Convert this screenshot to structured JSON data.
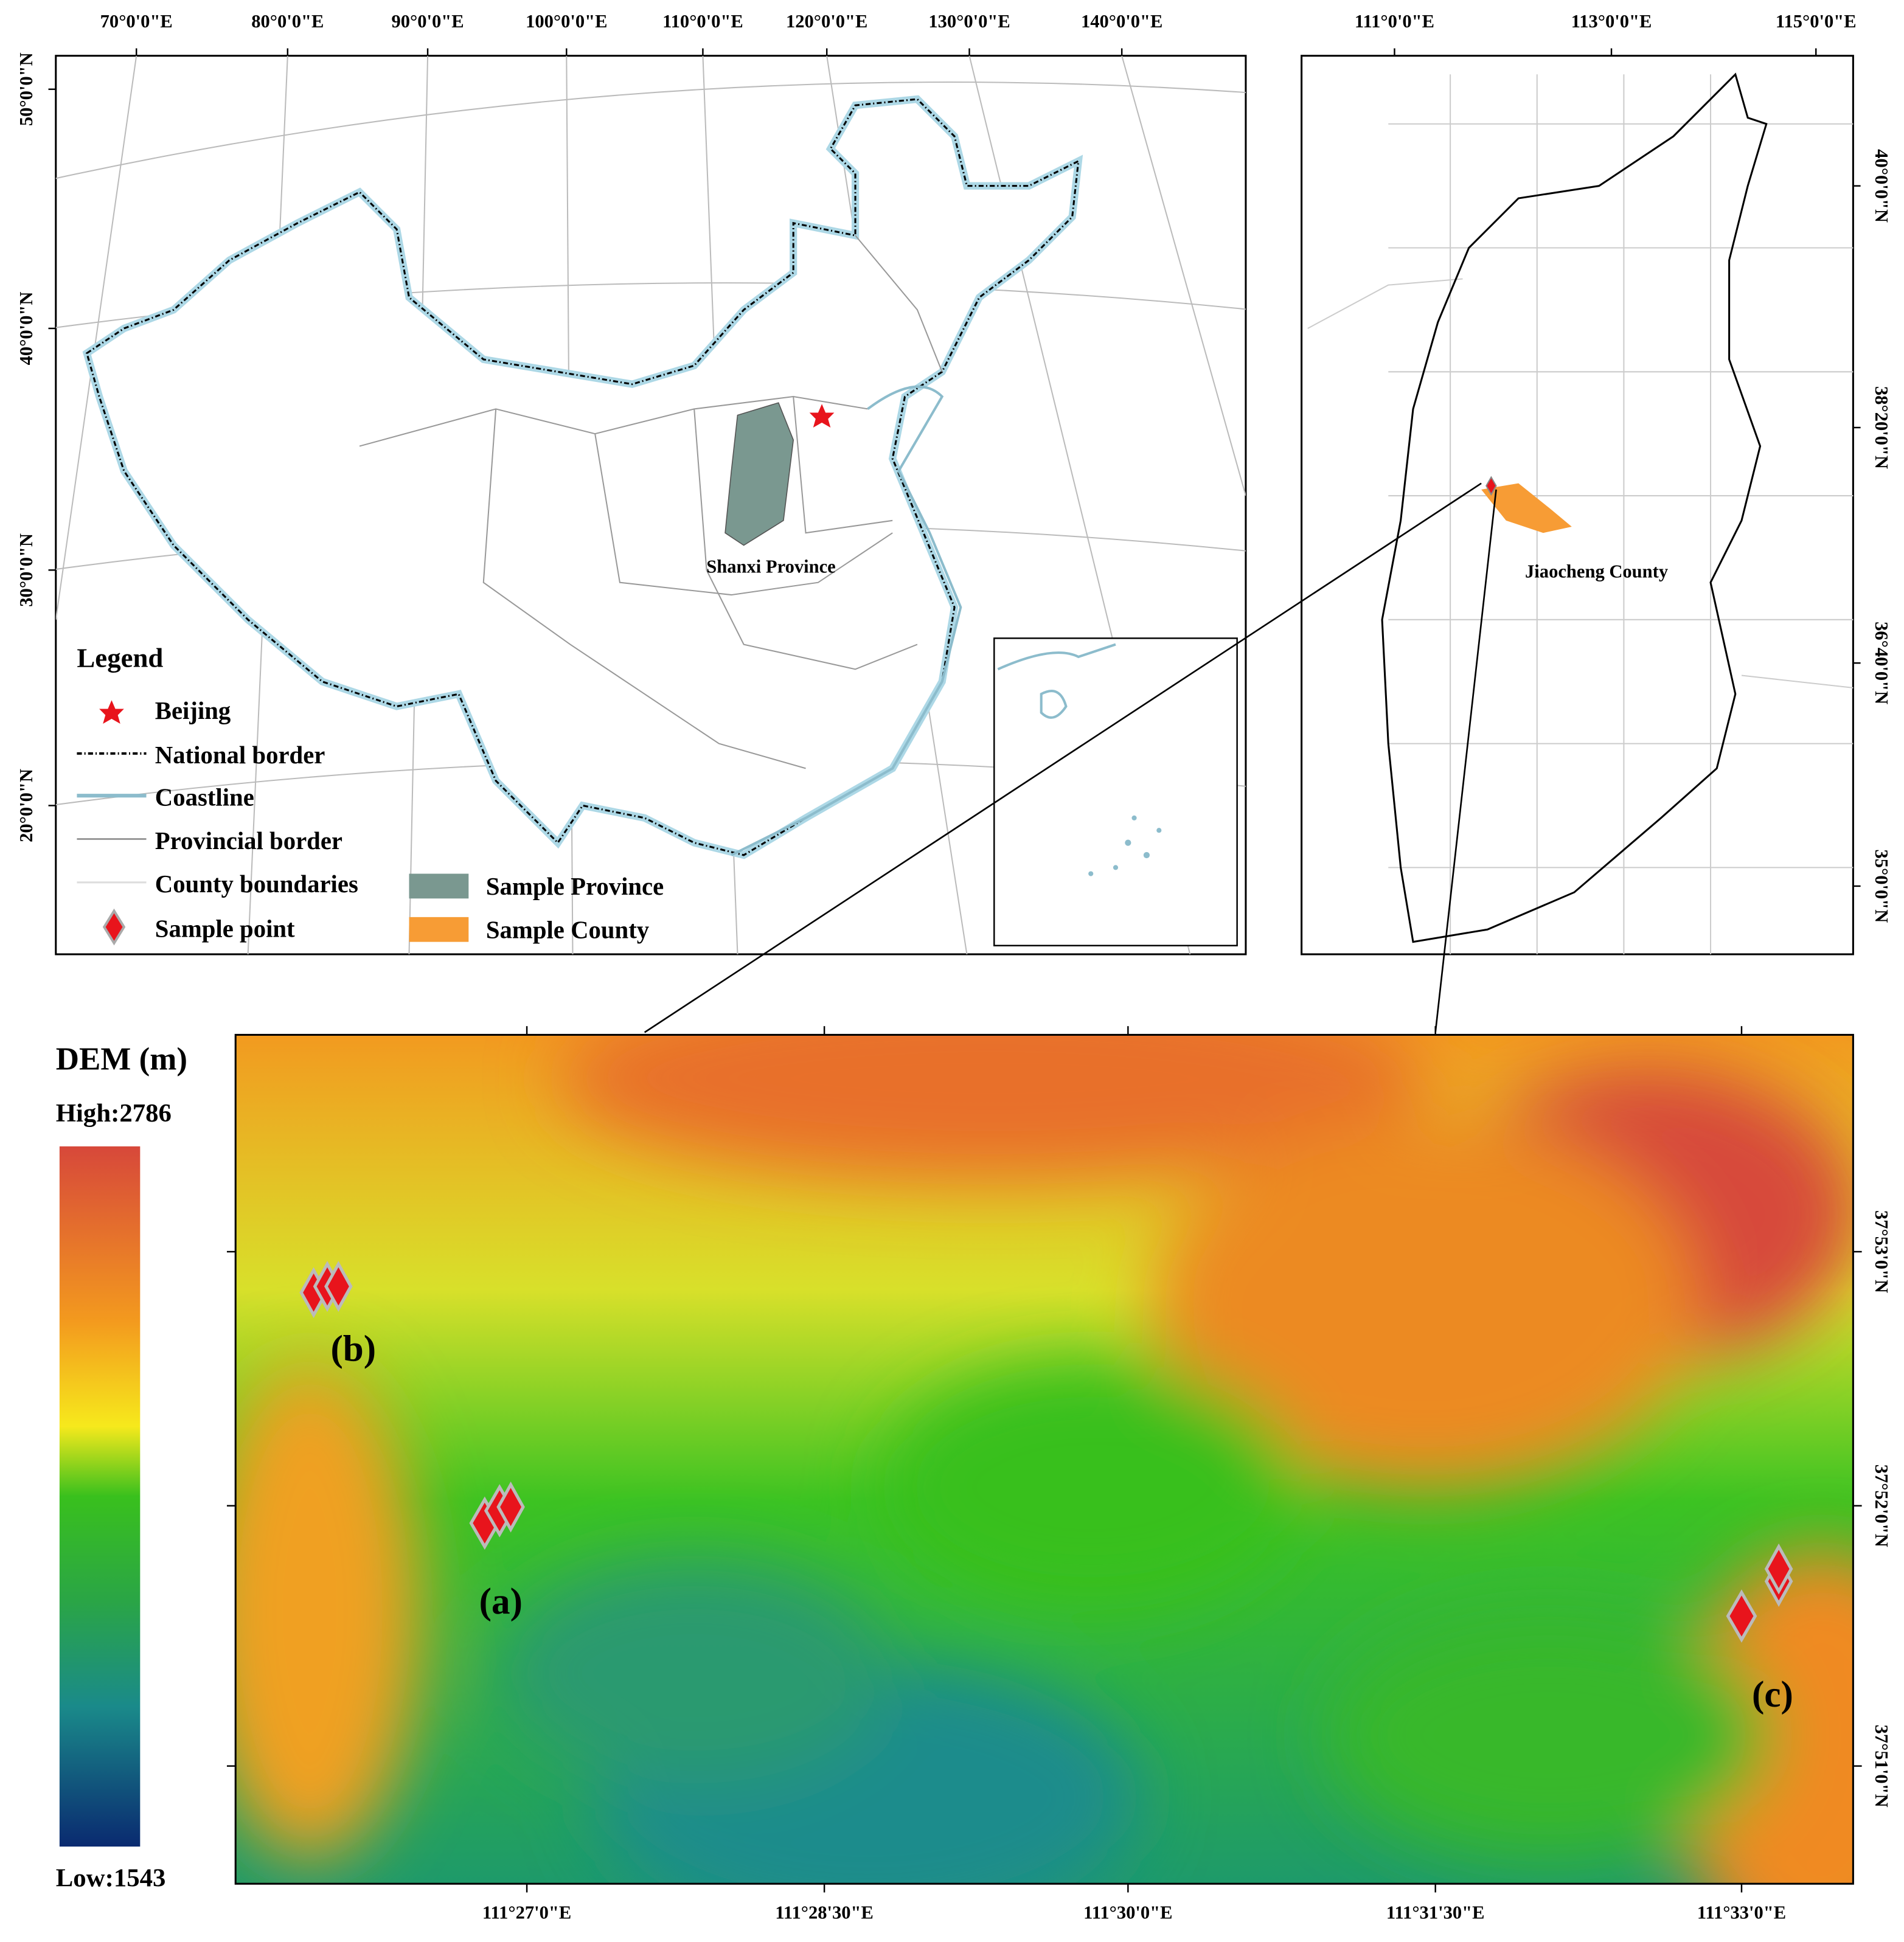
{
  "china_map": {
    "x_labels": [
      "70°0'0\"E",
      "80°0'0\"E",
      "90°0'0\"E",
      "100°0'0\"E",
      "110°0'0\"E",
      "120°0'0\"E",
      "130°0'0\"E",
      "140°0'0\"E"
    ],
    "y_labels": [
      "50°0'0\"N",
      "40°0'0\"N",
      "30°0'0\"N",
      "20°0'0\"N"
    ],
    "province_label": "Shanxi Province"
  },
  "legend": {
    "title": "Legend",
    "items": [
      "Beijing",
      "National border",
      "Coastline",
      "Provincial border",
      "County boundaries",
      "Sample point",
      "Sample Province",
      "Sample County"
    ]
  },
  "shanxi_map": {
    "x_labels": [
      "111°0'0\"E",
      "113°0'0\"E",
      "115°0'0\"E"
    ],
    "y_labels": [
      "40°0'0\"N",
      "38°20'0\"N",
      "36°40'0\"N",
      "35°0'0\"N"
    ],
    "county_label": "Jiaocheng County"
  },
  "dem_map": {
    "x_labels": [
      "111°27'0\"E",
      "111°28'30\"E",
      "111°30'0\"E",
      "111°31'30\"E",
      "111°33'0\"E"
    ],
    "y_labels": [
      "37°53'0\"N",
      "37°52'0\"N",
      "37°51'0\"N"
    ],
    "site_labels": [
      "(a)",
      "(b)",
      "(c)"
    ]
  },
  "dem_legend": {
    "title": "DEM (m)",
    "high": "High:2786",
    "low": "Low:1543"
  }
}
